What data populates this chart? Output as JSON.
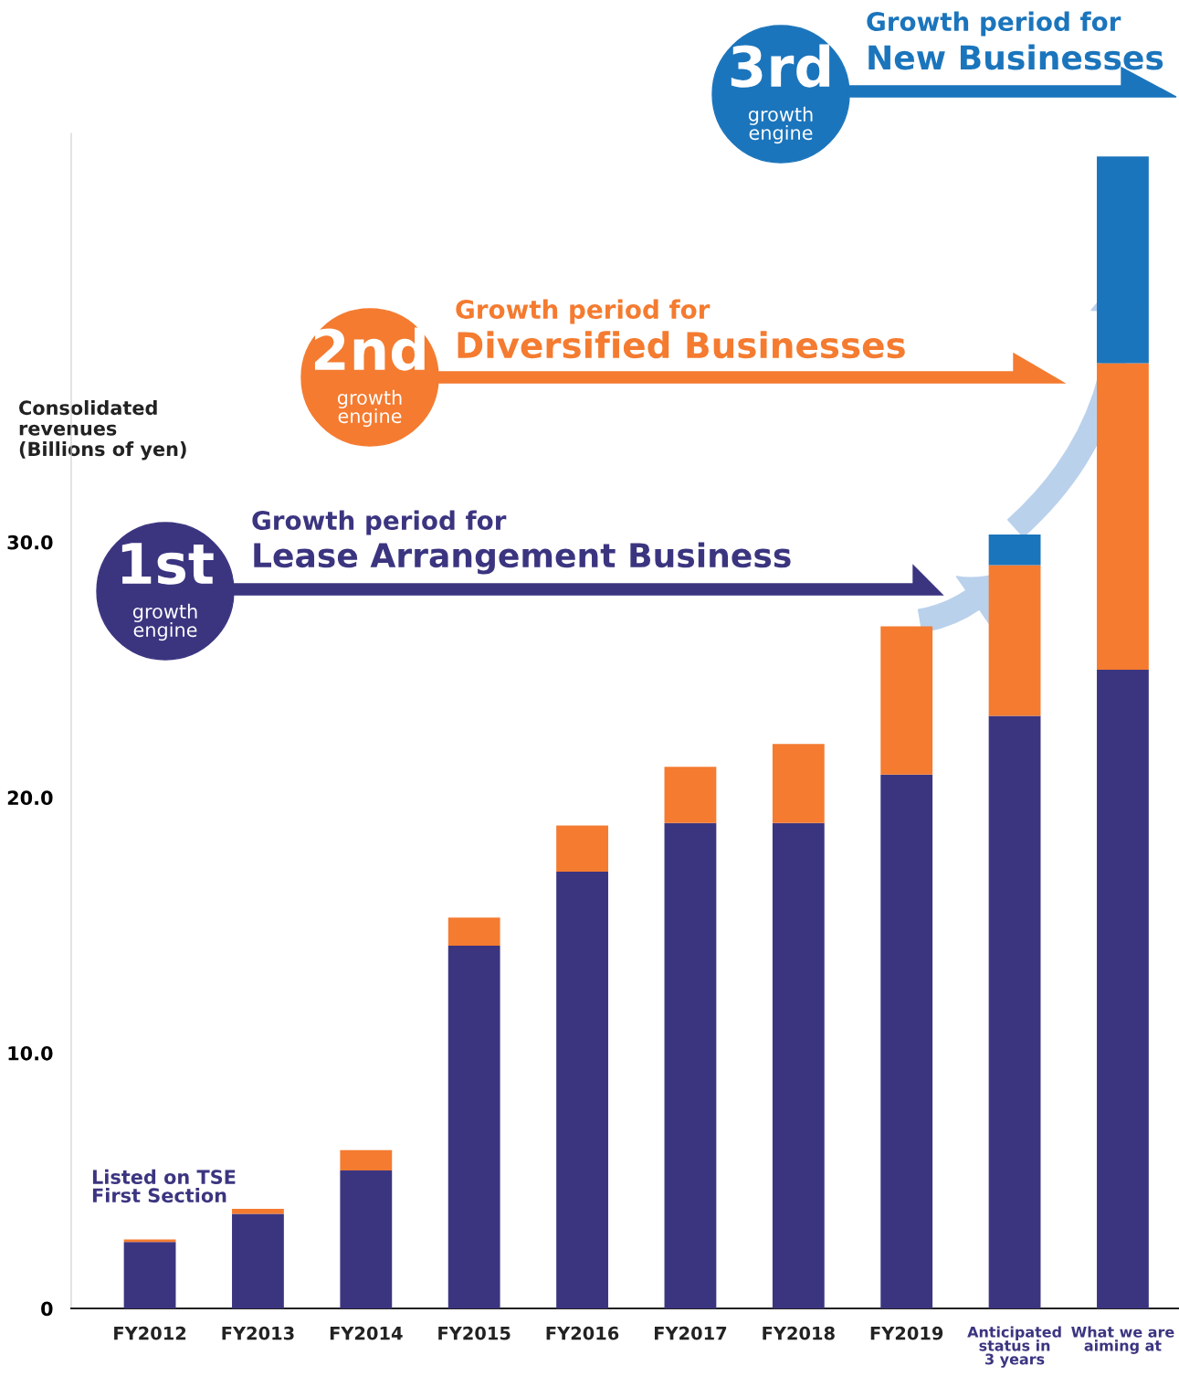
{
  "chart_data": {
    "type": "bar",
    "stacked": true,
    "ylabel": "Consolidated\nrevenues\n(Billions of yen)",
    "categories": [
      "FY2012",
      "FY2013",
      "FY2014",
      "FY2015",
      "FY2016",
      "FY2017",
      "FY2018",
      "FY2019",
      "Anticipated\nstatus in\n3 years",
      "What we are\naiming at"
    ],
    "series": [
      {
        "color": "#3b3580",
        "values": [
          2.6,
          3.7,
          5.4,
          14.2,
          17.1,
          19.0,
          19.0,
          20.9,
          23.2,
          25.0
        ]
      },
      {
        "color": "#f47b30",
        "values": [
          0.1,
          0.2,
          0.8,
          1.1,
          1.8,
          2.2,
          3.1,
          5.8,
          5.9,
          12.0
        ]
      },
      {
        "color": "#1b75bc",
        "values": [
          null,
          null,
          null,
          null,
          null,
          null,
          null,
          null,
          1.2,
          8.1
        ]
      }
    ],
    "ylim": [
      0,
      46
    ],
    "yticks": [
      0,
      {
        "value": 10,
        "label": "10.0"
      },
      {
        "value": 20,
        "label": "20.0"
      },
      {
        "value": 30,
        "label": "30.0"
      }
    ],
    "grid": false,
    "annotations": [
      "1st",
      "growth\nengine",
      "Growth period for",
      "Lease Arrangement Business",
      "2nd",
      "growth\nengine",
      "Growth period for",
      "Diversified Businesses",
      "3rd",
      "growth\nengine",
      "Growth period for",
      "New Businesses",
      "Listed on TSE\nFirst Section"
    ]
  }
}
